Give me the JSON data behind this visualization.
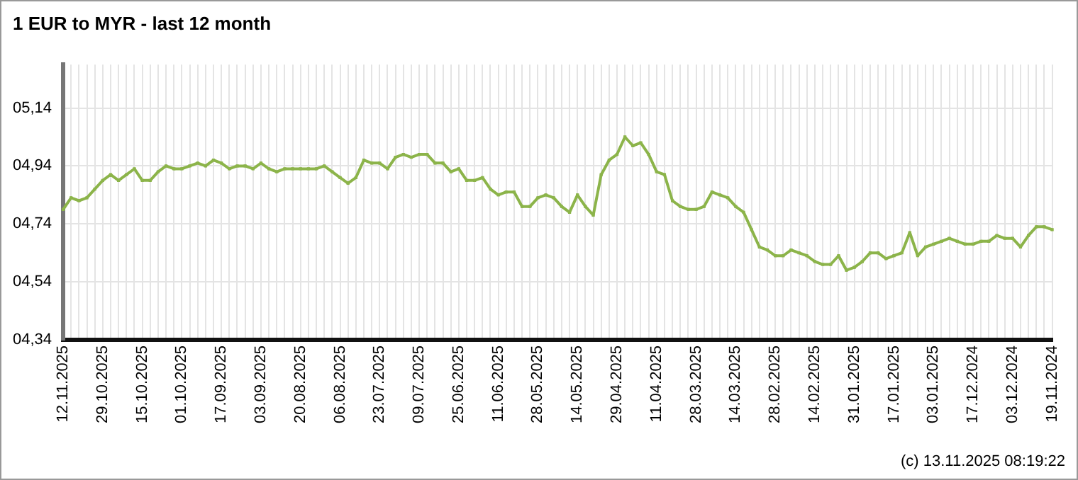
{
  "chart_data": {
    "type": "line",
    "title": "1 EUR to MYR - last 12 month",
    "categories": [
      "12.11.2025",
      null,
      null,
      null,
      null,
      "29.10.2025",
      null,
      null,
      null,
      null,
      "15.10.2025",
      null,
      null,
      null,
      null,
      "01.10.2025",
      null,
      null,
      null,
      null,
      "17.09.2025",
      null,
      null,
      null,
      null,
      "03.09.2025",
      null,
      null,
      null,
      null,
      "20.08.2025",
      null,
      null,
      null,
      null,
      "06.08.2025",
      null,
      null,
      null,
      null,
      "23.07.2025",
      null,
      null,
      null,
      null,
      "09.07.2025",
      null,
      null,
      null,
      null,
      "25.06.2025",
      null,
      null,
      null,
      null,
      "11.06.2025",
      null,
      null,
      null,
      null,
      "28.05.2025",
      null,
      null,
      null,
      null,
      "14.05.2025",
      null,
      null,
      null,
      null,
      "29.04.2025",
      null,
      null,
      null,
      null,
      "11.04.2025",
      null,
      null,
      null,
      null,
      "28.03.2025",
      null,
      null,
      null,
      null,
      "14.03.2025",
      null,
      null,
      null,
      null,
      "28.02.2025",
      null,
      null,
      null,
      null,
      "14.02.2025",
      null,
      null,
      null,
      null,
      "31.01.2025",
      null,
      null,
      null,
      null,
      "17.01.2025",
      null,
      null,
      null,
      null,
      "03.01.2025",
      null,
      null,
      null,
      null,
      "17.12.2024",
      null,
      null,
      null,
      null,
      "03.12.2024",
      null,
      null,
      null,
      null,
      "19.11.2024"
    ],
    "series": [
      {
        "color": "#8cb44a",
        "values": [
          4.79,
          4.83,
          4.82,
          4.83,
          4.86,
          4.89,
          4.91,
          4.89,
          4.91,
          4.93,
          4.89,
          4.89,
          4.92,
          4.94,
          4.93,
          4.93,
          4.94,
          4.95,
          4.94,
          4.96,
          4.95,
          4.93,
          4.94,
          4.94,
          4.93,
          4.95,
          4.93,
          4.92,
          4.93,
          4.93,
          4.93,
          4.93,
          4.93,
          4.94,
          4.92,
          4.9,
          4.88,
          4.9,
          4.96,
          4.95,
          4.95,
          4.93,
          4.97,
          4.98,
          4.97,
          4.98,
          4.98,
          4.95,
          4.95,
          4.92,
          4.93,
          4.89,
          4.89,
          4.9,
          4.86,
          4.84,
          4.85,
          4.85,
          4.8,
          4.8,
          4.83,
          4.84,
          4.83,
          4.8,
          4.78,
          4.84,
          4.8,
          4.77,
          4.91,
          4.96,
          4.98,
          5.04,
          5.01,
          5.02,
          4.98,
          4.92,
          4.91,
          4.82,
          4.8,
          4.79,
          4.79,
          4.8,
          4.85,
          4.84,
          4.83,
          4.8,
          4.78,
          4.72,
          4.66,
          4.65,
          4.63,
          4.63,
          4.65,
          4.64,
          4.63,
          4.61,
          4.6,
          4.6,
          4.63,
          4.58,
          4.59,
          4.61,
          4.64,
          4.64,
          4.62,
          4.63,
          4.64,
          4.71,
          4.63,
          4.66,
          4.67,
          4.68,
          4.69,
          4.68,
          4.67,
          4.67,
          4.68,
          4.68,
          4.7,
          4.69,
          4.69,
          4.66,
          4.7,
          4.73,
          4.73,
          4.72
        ]
      }
    ],
    "ylim": [
      4.34,
      5.29
    ],
    "yticks": [
      {
        "value": 4.34,
        "label": "04,34"
      },
      {
        "value": 4.54,
        "label": "04,54"
      },
      {
        "value": 4.74,
        "label": "04,74"
      },
      {
        "value": 4.94,
        "label": "04,94"
      },
      {
        "value": 5.14,
        "label": "05,14"
      }
    ],
    "grid": true,
    "marker": "square",
    "line_style": "solid",
    "legend": false,
    "annotations": [
      "(c) 13.11.2025 08:19:22"
    ]
  }
}
